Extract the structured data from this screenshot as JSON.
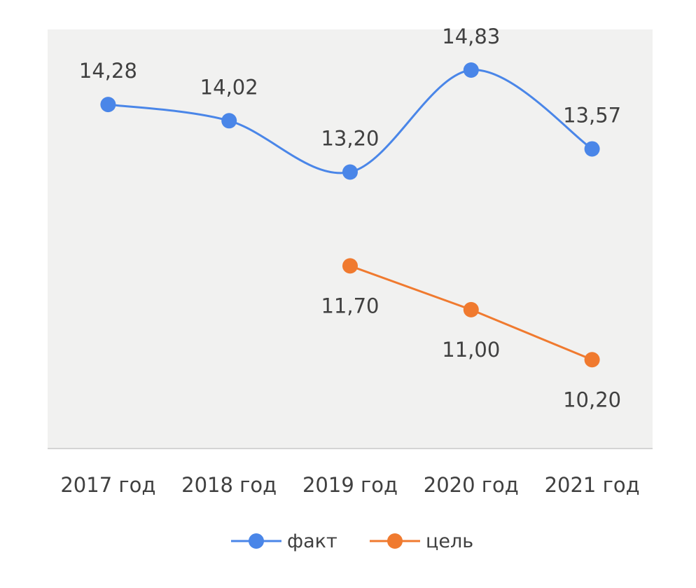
{
  "chart_data": {
    "type": "line",
    "categories": [
      "2017 год",
      "2018 год",
      "2019 год",
      "2020 год",
      "2021 год"
    ],
    "series": [
      {
        "name": "факт",
        "color": "#4a86e8",
        "smooth": true,
        "values": [
          14.28,
          14.02,
          13.2,
          14.83,
          13.57
        ],
        "labels": [
          "14,28",
          "14,02",
          "13,20",
          "14,83",
          "13,57"
        ],
        "label_position": "above"
      },
      {
        "name": "цель",
        "color": "#f07a2f",
        "smooth": false,
        "values": [
          null,
          null,
          11.7,
          11.0,
          10.2
        ],
        "labels": [
          "",
          "",
          "11,70",
          "11,00",
          "10,20"
        ],
        "label_position": "below"
      }
    ],
    "title": "",
    "xlabel": "",
    "ylabel": "",
    "ylim": [
      8.78,
      15.48
    ],
    "grid": false,
    "legend_position": "bottom"
  }
}
